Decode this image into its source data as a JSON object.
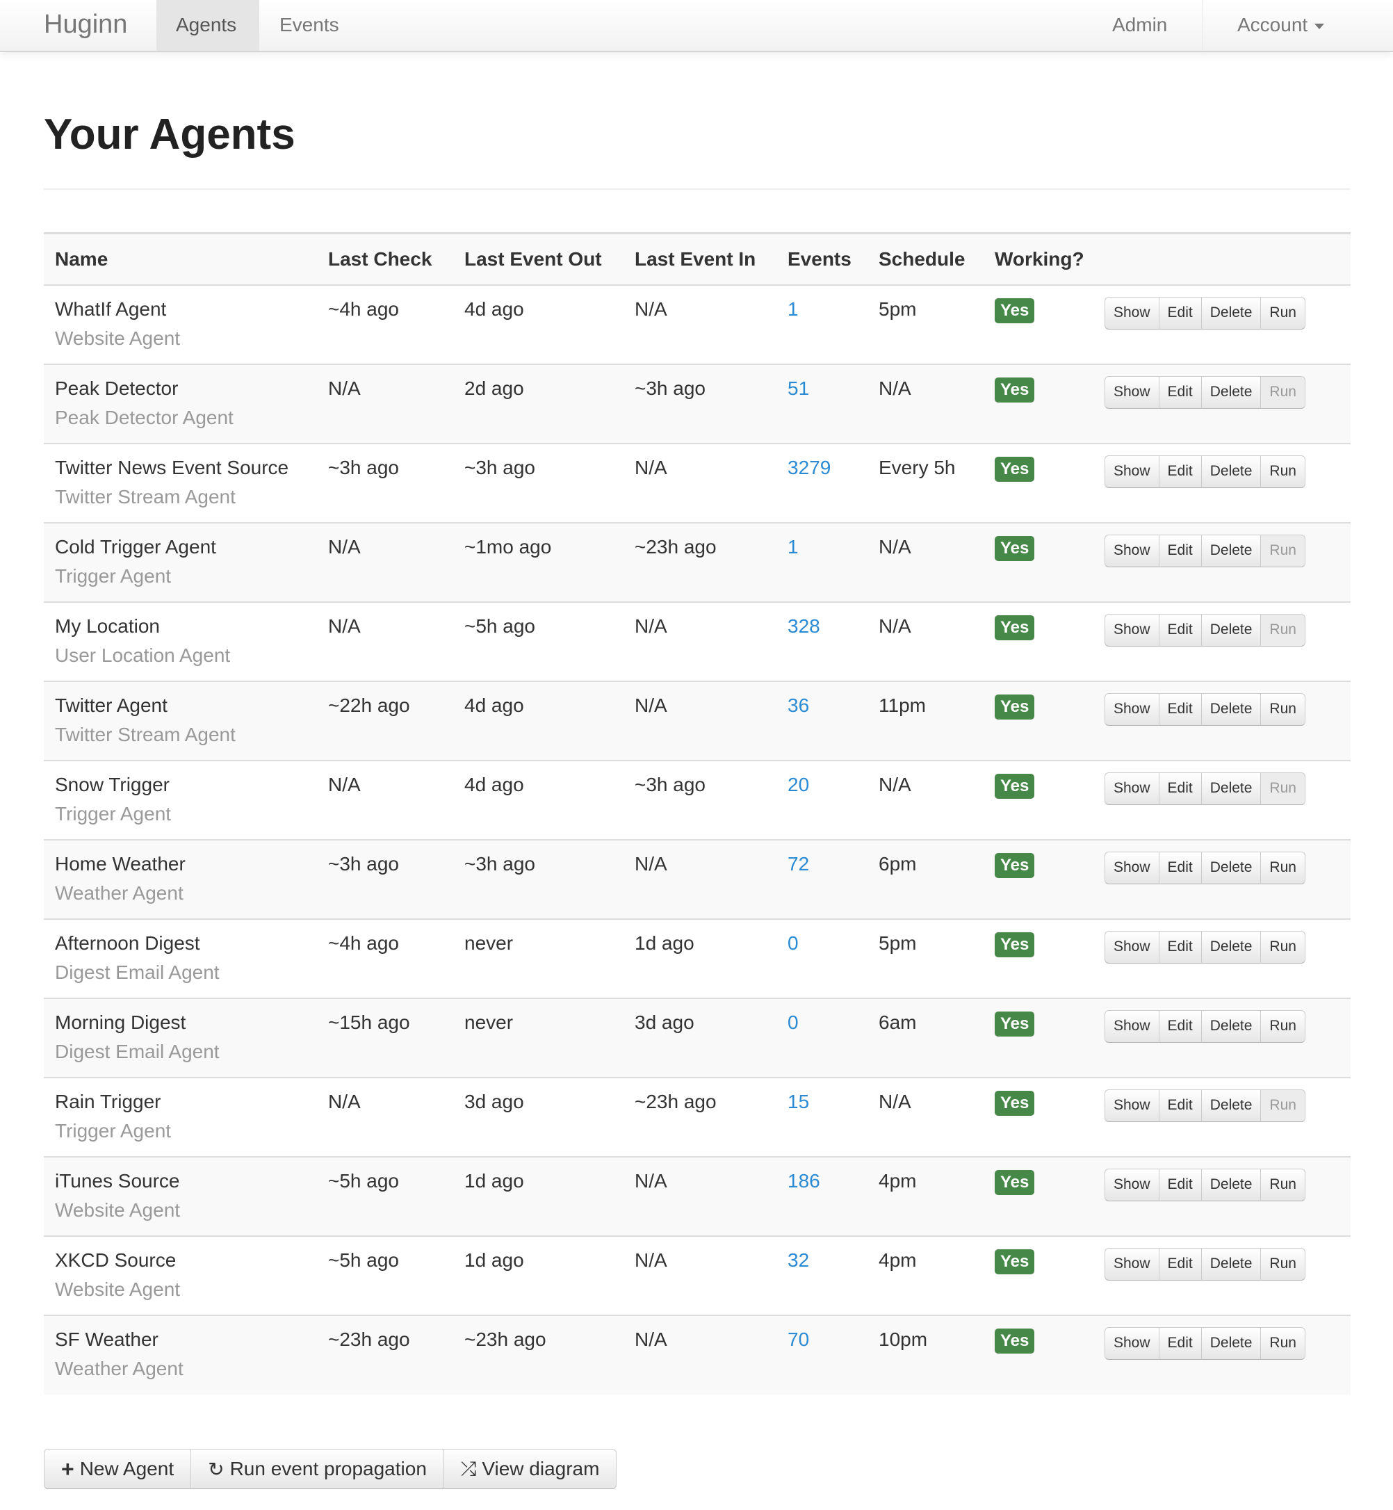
{
  "nav": {
    "brand": "Huginn",
    "items": [
      {
        "label": "Agents",
        "active": true
      },
      {
        "label": "Events"
      }
    ],
    "admin": "Admin",
    "account": "Account"
  },
  "page": {
    "title": "Your Agents"
  },
  "table": {
    "headers": [
      "Name",
      "Last Check",
      "Last Event Out",
      "Last Event In",
      "Events",
      "Schedule",
      "Working?"
    ],
    "actions": {
      "show": "Show",
      "edit": "Edit",
      "delete": "Delete",
      "run": "Run"
    },
    "rows": [
      {
        "name": "WhatIf Agent",
        "type": "Website Agent",
        "last_check": "~4h ago",
        "last_event_out": "4d ago",
        "last_event_in": "N/A",
        "events": "1",
        "schedule": "5pm",
        "working": "Yes",
        "run_enabled": true
      },
      {
        "name": "Peak Detector",
        "type": "Peak Detector Agent",
        "last_check": "N/A",
        "last_event_out": "2d ago",
        "last_event_in": "~3h ago",
        "events": "51",
        "schedule": "N/A",
        "working": "Yes",
        "run_enabled": false
      },
      {
        "name": "Twitter News Event Source",
        "type": "Twitter Stream Agent",
        "last_check": "~3h ago",
        "last_event_out": "~3h ago",
        "last_event_in": "N/A",
        "events": "3279",
        "schedule": "Every 5h",
        "working": "Yes",
        "run_enabled": true
      },
      {
        "name": "Cold Trigger Agent",
        "type": "Trigger Agent",
        "last_check": "N/A",
        "last_event_out": "~1mo ago",
        "last_event_in": "~23h ago",
        "events": "1",
        "schedule": "N/A",
        "working": "Yes",
        "run_enabled": false
      },
      {
        "name": "My Location",
        "type": "User Location Agent",
        "last_check": "N/A",
        "last_event_out": "~5h ago",
        "last_event_in": "N/A",
        "events": "328",
        "schedule": "N/A",
        "working": "Yes",
        "run_enabled": false
      },
      {
        "name": "Twitter Agent",
        "type": "Twitter Stream Agent",
        "last_check": "~22h ago",
        "last_event_out": "4d ago",
        "last_event_in": "N/A",
        "events": "36",
        "schedule": "11pm",
        "working": "Yes",
        "run_enabled": true
      },
      {
        "name": "Snow Trigger",
        "type": "Trigger Agent",
        "last_check": "N/A",
        "last_event_out": "4d ago",
        "last_event_in": "~3h ago",
        "events": "20",
        "schedule": "N/A",
        "working": "Yes",
        "run_enabled": false
      },
      {
        "name": "Home Weather",
        "type": "Weather Agent",
        "last_check": "~3h ago",
        "last_event_out": "~3h ago",
        "last_event_in": "N/A",
        "events": "72",
        "schedule": "6pm",
        "working": "Yes",
        "run_enabled": true
      },
      {
        "name": "Afternoon Digest",
        "type": "Digest Email Agent",
        "last_check": "~4h ago",
        "last_event_out": "never",
        "last_event_in": "1d ago",
        "events": "0",
        "schedule": "5pm",
        "working": "Yes",
        "run_enabled": true
      },
      {
        "name": "Morning Digest",
        "type": "Digest Email Agent",
        "last_check": "~15h ago",
        "last_event_out": "never",
        "last_event_in": "3d ago",
        "events": "0",
        "schedule": "6am",
        "working": "Yes",
        "run_enabled": true
      },
      {
        "name": "Rain Trigger",
        "type": "Trigger Agent",
        "last_check": "N/A",
        "last_event_out": "3d ago",
        "last_event_in": "~23h ago",
        "events": "15",
        "schedule": "N/A",
        "working": "Yes",
        "run_enabled": false
      },
      {
        "name": "iTunes Source",
        "type": "Website Agent",
        "last_check": "~5h ago",
        "last_event_out": "1d ago",
        "last_event_in": "N/A",
        "events": "186",
        "schedule": "4pm",
        "working": "Yes",
        "run_enabled": true
      },
      {
        "name": "XKCD Source",
        "type": "Website Agent",
        "last_check": "~5h ago",
        "last_event_out": "1d ago",
        "last_event_in": "N/A",
        "events": "32",
        "schedule": "4pm",
        "working": "Yes",
        "run_enabled": true
      },
      {
        "name": "SF Weather",
        "type": "Weather Agent",
        "last_check": "~23h ago",
        "last_event_out": "~23h ago",
        "last_event_in": "N/A",
        "events": "70",
        "schedule": "10pm",
        "working": "Yes",
        "run_enabled": true
      }
    ]
  },
  "footer_buttons": {
    "new_agent": "New Agent",
    "run_propagation": "Run event propagation",
    "view_diagram": "View diagram"
  },
  "colors": {
    "working_badge": "#468847",
    "link": "#2a8ad4"
  }
}
